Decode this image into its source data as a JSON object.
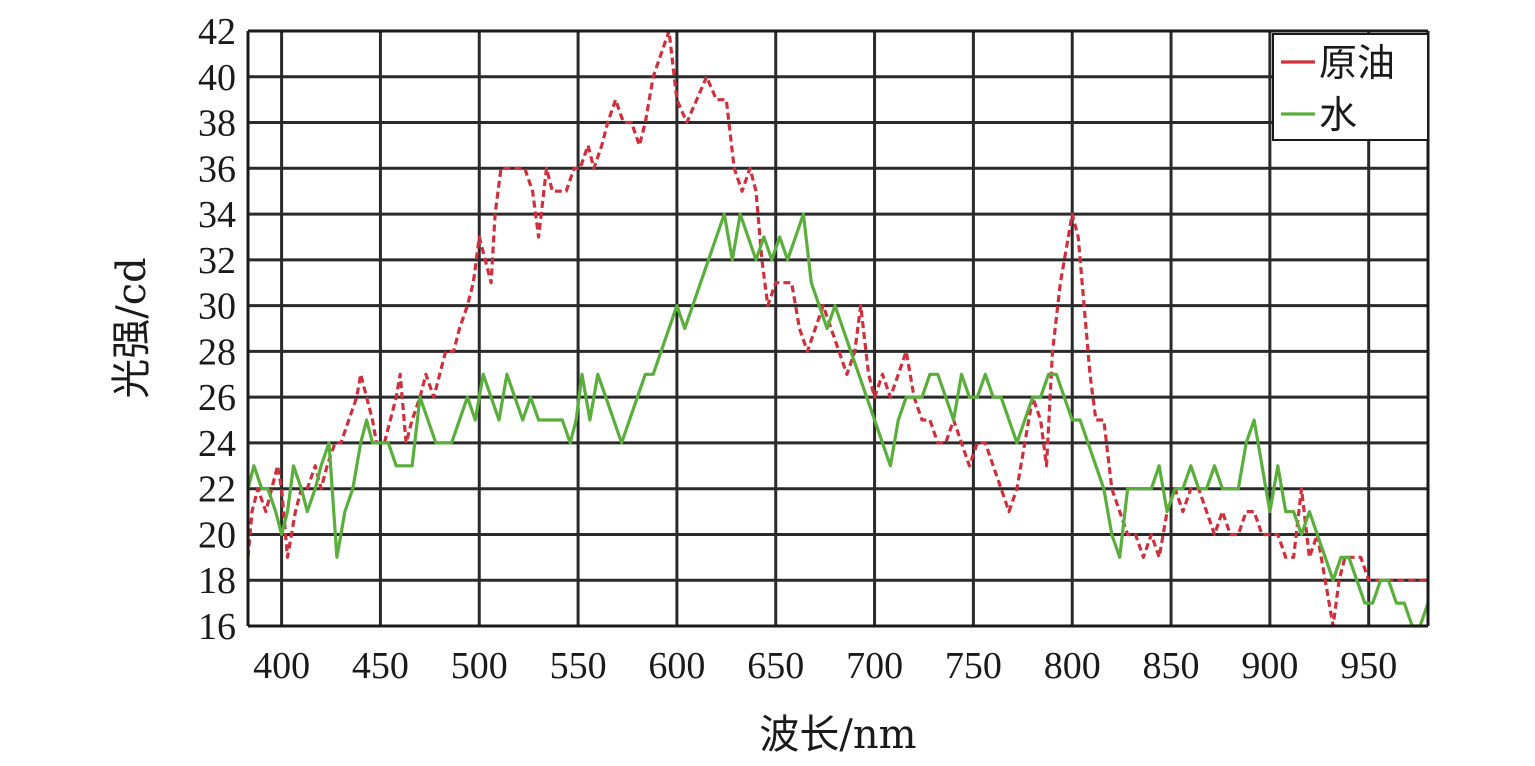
{
  "chart_data": {
    "type": "line",
    "xlabel": "波长/nm",
    "ylabel": "光强/cd",
    "xlim": [
      383,
      980
    ],
    "ylim": [
      16,
      42
    ],
    "x_ticks": [
      400,
      450,
      500,
      550,
      600,
      650,
      700,
      750,
      800,
      850,
      900,
      950
    ],
    "y_ticks": [
      16,
      18,
      20,
      22,
      24,
      26,
      28,
      30,
      32,
      34,
      36,
      38,
      40,
      42
    ],
    "grid": true,
    "legend_position": "top-right",
    "series": [
      {
        "name": "原油",
        "color": "#d0303c",
        "style": "dashed",
        "points": [
          [
            383,
            19
          ],
          [
            385,
            21
          ],
          [
            388,
            22
          ],
          [
            392,
            21
          ],
          [
            395,
            22
          ],
          [
            398,
            23
          ],
          [
            400,
            22
          ],
          [
            403,
            19
          ],
          [
            407,
            21
          ],
          [
            410,
            22
          ],
          [
            413,
            22
          ],
          [
            417,
            23
          ],
          [
            420,
            22
          ],
          [
            423,
            23
          ],
          [
            427,
            24
          ],
          [
            430,
            24
          ],
          [
            434,
            25
          ],
          [
            438,
            26
          ],
          [
            440,
            27
          ],
          [
            443,
            26
          ],
          [
            446,
            25
          ],
          [
            448,
            24
          ],
          [
            452,
            24
          ],
          [
            455,
            25
          ],
          [
            458,
            26
          ],
          [
            460,
            27
          ],
          [
            463,
            24
          ],
          [
            466,
            25
          ],
          [
            470,
            26
          ],
          [
            473,
            27
          ],
          [
            477,
            26
          ],
          [
            480,
            27
          ],
          [
            483,
            28
          ],
          [
            487,
            28
          ],
          [
            490,
            29
          ],
          [
            494,
            30
          ],
          [
            497,
            31
          ],
          [
            500,
            33
          ],
          [
            503,
            32
          ],
          [
            506,
            31
          ],
          [
            508,
            34
          ],
          [
            511,
            36
          ],
          [
            515,
            36
          ],
          [
            519,
            36
          ],
          [
            523,
            36
          ],
          [
            527,
            35
          ],
          [
            530,
            33
          ],
          [
            534,
            36
          ],
          [
            537,
            35
          ],
          [
            541,
            35
          ],
          [
            544,
            35
          ],
          [
            548,
            36
          ],
          [
            551,
            36
          ],
          [
            555,
            37
          ],
          [
            558,
            36
          ],
          [
            562,
            37
          ],
          [
            565,
            38
          ],
          [
            569,
            39
          ],
          [
            573,
            38
          ],
          [
            577,
            38
          ],
          [
            581,
            37
          ],
          [
            584,
            38
          ],
          [
            588,
            40
          ],
          [
            592,
            41
          ],
          [
            596,
            42
          ],
          [
            600,
            39
          ],
          [
            605,
            38
          ],
          [
            610,
            39
          ],
          [
            615,
            40
          ],
          [
            620,
            39
          ],
          [
            625,
            39
          ],
          [
            629,
            36
          ],
          [
            633,
            35
          ],
          [
            637,
            36
          ],
          [
            640,
            35
          ],
          [
            643,
            32
          ],
          [
            646,
            30
          ],
          [
            650,
            31
          ],
          [
            654,
            31
          ],
          [
            658,
            31
          ],
          [
            662,
            29
          ],
          [
            666,
            28
          ],
          [
            670,
            29
          ],
          [
            674,
            30
          ],
          [
            678,
            29
          ],
          [
            682,
            28
          ],
          [
            686,
            27
          ],
          [
            690,
            28
          ],
          [
            693,
            30
          ],
          [
            697,
            27
          ],
          [
            700,
            26
          ],
          [
            704,
            27
          ],
          [
            708,
            26
          ],
          [
            712,
            27
          ],
          [
            716,
            28
          ],
          [
            720,
            26
          ],
          [
            724,
            25
          ],
          [
            728,
            25
          ],
          [
            732,
            24
          ],
          [
            736,
            24
          ],
          [
            740,
            25
          ],
          [
            744,
            24
          ],
          [
            748,
            23
          ],
          [
            752,
            24
          ],
          [
            756,
            24
          ],
          [
            760,
            23
          ],
          [
            764,
            22
          ],
          [
            768,
            21
          ],
          [
            772,
            22
          ],
          [
            776,
            24
          ],
          [
            780,
            26
          ],
          [
            784,
            25
          ],
          [
            787,
            23
          ],
          [
            790,
            28
          ],
          [
            794,
            31
          ],
          [
            798,
            33
          ],
          [
            800,
            34
          ],
          [
            803,
            33
          ],
          [
            806,
            30
          ],
          [
            809,
            27
          ],
          [
            812,
            25
          ],
          [
            816,
            25
          ],
          [
            820,
            22
          ],
          [
            824,
            21
          ],
          [
            828,
            20
          ],
          [
            832,
            20
          ],
          [
            836,
            19
          ],
          [
            840,
            20
          ],
          [
            844,
            19
          ],
          [
            848,
            21
          ],
          [
            852,
            22
          ],
          [
            856,
            21
          ],
          [
            860,
            22
          ],
          [
            864,
            22
          ],
          [
            868,
            21
          ],
          [
            872,
            20
          ],
          [
            876,
            21
          ],
          [
            880,
            20
          ],
          [
            884,
            20
          ],
          [
            888,
            21
          ],
          [
            892,
            21
          ],
          [
            896,
            20
          ],
          [
            900,
            20
          ],
          [
            904,
            20
          ],
          [
            908,
            19
          ],
          [
            912,
            19
          ],
          [
            916,
            22
          ],
          [
            920,
            19
          ],
          [
            924,
            20
          ],
          [
            928,
            18
          ],
          [
            932,
            16
          ],
          [
            935,
            18
          ],
          [
            938,
            19
          ],
          [
            942,
            19
          ],
          [
            946,
            19
          ],
          [
            950,
            18
          ],
          [
            955,
            18
          ],
          [
            960,
            18
          ],
          [
            965,
            18
          ],
          [
            970,
            18
          ],
          [
            975,
            18
          ],
          [
            980,
            18
          ]
        ]
      },
      {
        "name": "水",
        "color": "#5aaf3c",
        "style": "solid",
        "points": [
          [
            383,
            22
          ],
          [
            386,
            23
          ],
          [
            390,
            22
          ],
          [
            393,
            22
          ],
          [
            397,
            21
          ],
          [
            400,
            20
          ],
          [
            403,
            21
          ],
          [
            406,
            23
          ],
          [
            410,
            22
          ],
          [
            413,
            21
          ],
          [
            417,
            22
          ],
          [
            420,
            23
          ],
          [
            424,
            24
          ],
          [
            428,
            19
          ],
          [
            432,
            21
          ],
          [
            436,
            22
          ],
          [
            440,
            24
          ],
          [
            443,
            25
          ],
          [
            446,
            24
          ],
          [
            450,
            24
          ],
          [
            454,
            24
          ],
          [
            458,
            23
          ],
          [
            462,
            23
          ],
          [
            466,
            23
          ],
          [
            470,
            26
          ],
          [
            474,
            25
          ],
          [
            478,
            24
          ],
          [
            482,
            24
          ],
          [
            486,
            24
          ],
          [
            490,
            25
          ],
          [
            494,
            26
          ],
          [
            498,
            25
          ],
          [
            502,
            27
          ],
          [
            506,
            26
          ],
          [
            510,
            25
          ],
          [
            514,
            27
          ],
          [
            518,
            26
          ],
          [
            522,
            25
          ],
          [
            526,
            26
          ],
          [
            530,
            25
          ],
          [
            534,
            25
          ],
          [
            538,
            25
          ],
          [
            542,
            25
          ],
          [
            546,
            24
          ],
          [
            549,
            25
          ],
          [
            552,
            27
          ],
          [
            556,
            25
          ],
          [
            560,
            27
          ],
          [
            564,
            26
          ],
          [
            568,
            25
          ],
          [
            572,
            24
          ],
          [
            576,
            25
          ],
          [
            580,
            26
          ],
          [
            584,
            27
          ],
          [
            588,
            27
          ],
          [
            592,
            28
          ],
          [
            596,
            29
          ],
          [
            600,
            30
          ],
          [
            604,
            29
          ],
          [
            608,
            30
          ],
          [
            612,
            31
          ],
          [
            616,
            32
          ],
          [
            620,
            33
          ],
          [
            624,
            34
          ],
          [
            628,
            32
          ],
          [
            632,
            34
          ],
          [
            636,
            33
          ],
          [
            640,
            32
          ],
          [
            644,
            33
          ],
          [
            648,
            32
          ],
          [
            652,
            33
          ],
          [
            656,
            32
          ],
          [
            660,
            33
          ],
          [
            664,
            34
          ],
          [
            668,
            31
          ],
          [
            672,
            30
          ],
          [
            676,
            29
          ],
          [
            680,
            30
          ],
          [
            684,
            29
          ],
          [
            688,
            28
          ],
          [
            692,
            27
          ],
          [
            696,
            26
          ],
          [
            700,
            25
          ],
          [
            704,
            24
          ],
          [
            708,
            23
          ],
          [
            712,
            25
          ],
          [
            716,
            26
          ],
          [
            720,
            26
          ],
          [
            724,
            26
          ],
          [
            728,
            27
          ],
          [
            732,
            27
          ],
          [
            736,
            26
          ],
          [
            740,
            25
          ],
          [
            744,
            27
          ],
          [
            748,
            26
          ],
          [
            752,
            26
          ],
          [
            756,
            27
          ],
          [
            760,
            26
          ],
          [
            764,
            26
          ],
          [
            768,
            25
          ],
          [
            772,
            24
          ],
          [
            776,
            25
          ],
          [
            780,
            26
          ],
          [
            784,
            26
          ],
          [
            788,
            27
          ],
          [
            792,
            27
          ],
          [
            796,
            26
          ],
          [
            800,
            25
          ],
          [
            804,
            25
          ],
          [
            808,
            24
          ],
          [
            812,
            23
          ],
          [
            816,
            22
          ],
          [
            820,
            20
          ],
          [
            824,
            19
          ],
          [
            828,
            22
          ],
          [
            832,
            22
          ],
          [
            836,
            22
          ],
          [
            840,
            22
          ],
          [
            844,
            23
          ],
          [
            848,
            21
          ],
          [
            852,
            22
          ],
          [
            856,
            22
          ],
          [
            860,
            23
          ],
          [
            864,
            22
          ],
          [
            868,
            22
          ],
          [
            872,
            23
          ],
          [
            876,
            22
          ],
          [
            880,
            22
          ],
          [
            884,
            22
          ],
          [
            888,
            24
          ],
          [
            892,
            25
          ],
          [
            896,
            23
          ],
          [
            900,
            21
          ],
          [
            904,
            23
          ],
          [
            908,
            21
          ],
          [
            912,
            21
          ],
          [
            916,
            20
          ],
          [
            920,
            21
          ],
          [
            924,
            20
          ],
          [
            928,
            19
          ],
          [
            932,
            18
          ],
          [
            936,
            19
          ],
          [
            940,
            19
          ],
          [
            944,
            18
          ],
          [
            948,
            17
          ],
          [
            952,
            17
          ],
          [
            956,
            18
          ],
          [
            960,
            18
          ],
          [
            964,
            17
          ],
          [
            968,
            17
          ],
          [
            972,
            16
          ],
          [
            976,
            16
          ],
          [
            980,
            17
          ]
        ]
      }
    ]
  }
}
